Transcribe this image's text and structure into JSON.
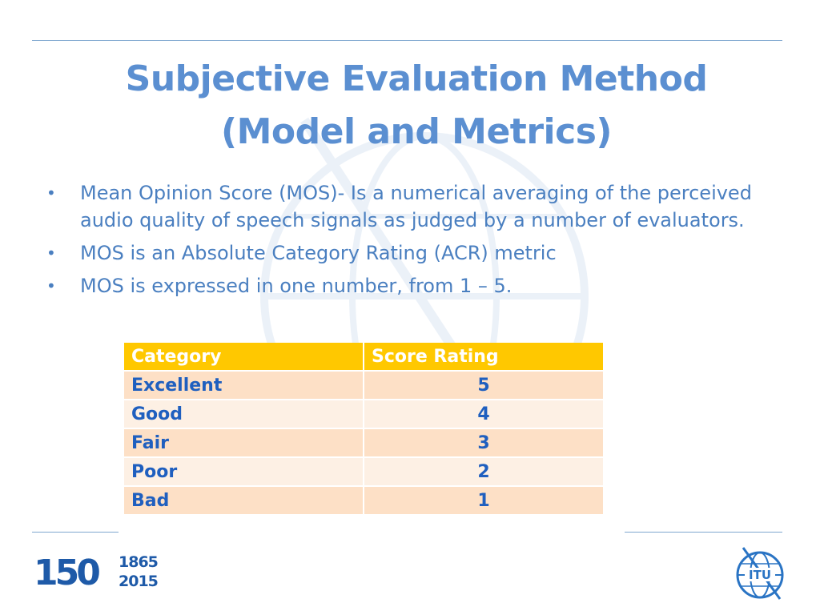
{
  "slide": {
    "title_line1": "Subjective Evaluation Method",
    "title_line2": "(Model and Metrics)",
    "bullets": [
      "Mean Opinion Score (MOS)- Is a numerical averaging of the perceived audio quality of speech signals as judged by a number of evaluators.",
      "MOS is an Absolute Category Rating (ACR) metric",
      "MOS is expressed in one number, from 1 – 5."
    ],
    "bullet_glyph": "•"
  },
  "table": {
    "headers": [
      "Category",
      "Score Rating"
    ],
    "rows": [
      [
        "Excellent",
        "5"
      ],
      [
        "Good",
        "4"
      ],
      [
        "Fair",
        "3"
      ],
      [
        "Poor",
        "2"
      ],
      [
        "Bad",
        "1"
      ]
    ]
  },
  "footer": {
    "anniversary_digits": "150",
    "anniversary_year_start": "1865",
    "anniversary_year_end": "2015",
    "logo_text": "ITU"
  },
  "colors": {
    "title": "#5b8fd1",
    "body_text": "#4a7fc0",
    "table_header_bg": "#ffc800",
    "table_row_odd": "#fde0c6",
    "table_row_even": "#fdf0e4",
    "table_text": "#1f5fbf",
    "rule": "#7fa7cf"
  }
}
